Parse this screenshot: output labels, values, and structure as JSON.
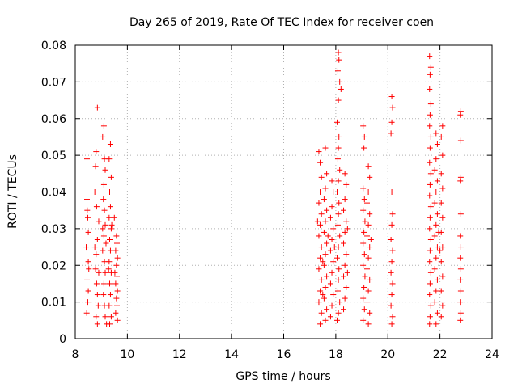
{
  "chart_data": {
    "type": "scatter",
    "title": "Day 265 of 2019, Rate Of TEC Index for receiver coen",
    "xlabel": "GPS time / hours",
    "ylabel": "ROTI / TECUs",
    "xlim": [
      8,
      24
    ],
    "ylim": [
      0,
      0.08
    ],
    "xticks": [
      8,
      10,
      12,
      14,
      16,
      18,
      20,
      22,
      24
    ],
    "xtick_labels": [
      "8",
      "10",
      "12",
      "14",
      "16",
      "18",
      "20",
      "22",
      "24"
    ],
    "yticks": [
      0,
      0.01,
      0.02,
      0.03,
      0.04,
      0.05,
      0.06,
      0.07,
      0.08
    ],
    "ytick_labels": [
      "0",
      "0.01",
      "0.02",
      "0.03",
      "0.04",
      "0.05",
      "0.06",
      "0.07",
      "0.08"
    ],
    "grid": true,
    "marker": "+",
    "color": "#ff0000",
    "series": [
      {
        "name": "ROTI",
        "points": [
          [
            8.45,
            0.049
          ],
          [
            8.45,
            0.038
          ],
          [
            8.48,
            0.033
          ],
          [
            8.5,
            0.029
          ],
          [
            8.42,
            0.025
          ],
          [
            8.5,
            0.021
          ],
          [
            8.45,
            0.016
          ],
          [
            8.5,
            0.013
          ],
          [
            8.48,
            0.01
          ],
          [
            8.44,
            0.007
          ],
          [
            8.52,
            0.019
          ],
          [
            8.46,
            0.035
          ],
          [
            8.8,
            0.051
          ],
          [
            8.85,
            0.063
          ],
          [
            8.78,
            0.047
          ],
          [
            8.75,
            0.04
          ],
          [
            8.82,
            0.036
          ],
          [
            8.9,
            0.032
          ],
          [
            8.85,
            0.027
          ],
          [
            8.8,
            0.023
          ],
          [
            8.78,
            0.019
          ],
          [
            8.82,
            0.015
          ],
          [
            8.85,
            0.012
          ],
          [
            8.88,
            0.009
          ],
          [
            8.8,
            0.006
          ],
          [
            8.85,
            0.004
          ],
          [
            8.9,
            0.018
          ],
          [
            8.75,
            0.025
          ],
          [
            9.1,
            0.058
          ],
          [
            9.05,
            0.055
          ],
          [
            9.12,
            0.049
          ],
          [
            9.15,
            0.046
          ],
          [
            9.1,
            0.042
          ],
          [
            9.08,
            0.038
          ],
          [
            9.12,
            0.035
          ],
          [
            9.15,
            0.031
          ],
          [
            9.1,
            0.028
          ],
          [
            9.05,
            0.024
          ],
          [
            9.12,
            0.021
          ],
          [
            9.15,
            0.018
          ],
          [
            9.1,
            0.015
          ],
          [
            9.08,
            0.012
          ],
          [
            9.12,
            0.009
          ],
          [
            9.15,
            0.006
          ],
          [
            9.2,
            0.004
          ],
          [
            9.05,
            0.03
          ],
          [
            9.18,
            0.026
          ],
          [
            9.35,
            0.053
          ],
          [
            9.3,
            0.049
          ],
          [
            9.38,
            0.044
          ],
          [
            9.32,
            0.04
          ],
          [
            9.35,
            0.036
          ],
          [
            9.3,
            0.033
          ],
          [
            9.38,
            0.03
          ],
          [
            9.32,
            0.027
          ],
          [
            9.35,
            0.024
          ],
          [
            9.3,
            0.021
          ],
          [
            9.38,
            0.018
          ],
          [
            9.32,
            0.015
          ],
          [
            9.35,
            0.012
          ],
          [
            9.3,
            0.009
          ],
          [
            9.38,
            0.006
          ],
          [
            9.32,
            0.004
          ],
          [
            9.4,
            0.031
          ],
          [
            9.28,
            0.019
          ],
          [
            9.6,
            0.026
          ],
          [
            9.55,
            0.024
          ],
          [
            9.62,
            0.022
          ],
          [
            9.58,
            0.02
          ],
          [
            9.6,
            0.017
          ],
          [
            9.55,
            0.015
          ],
          [
            9.62,
            0.013
          ],
          [
            9.58,
            0.011
          ],
          [
            9.6,
            0.009
          ],
          [
            9.55,
            0.007
          ],
          [
            9.62,
            0.005
          ],
          [
            9.58,
            0.028
          ],
          [
            9.5,
            0.033
          ],
          [
            9.52,
            0.018
          ],
          [
            17.35,
            0.051
          ],
          [
            17.4,
            0.048
          ],
          [
            17.45,
            0.044
          ],
          [
            17.4,
            0.04
          ],
          [
            17.35,
            0.037
          ],
          [
            17.45,
            0.034
          ],
          [
            17.4,
            0.031
          ],
          [
            17.35,
            0.028
          ],
          [
            17.45,
            0.025
          ],
          [
            17.4,
            0.022
          ],
          [
            17.35,
            0.019
          ],
          [
            17.45,
            0.016
          ],
          [
            17.4,
            0.013
          ],
          [
            17.35,
            0.01
          ],
          [
            17.45,
            0.007
          ],
          [
            17.4,
            0.004
          ],
          [
            17.3,
            0.032
          ],
          [
            17.5,
            0.021
          ],
          [
            17.6,
            0.052
          ],
          [
            17.65,
            0.045
          ],
          [
            17.6,
            0.041
          ],
          [
            17.55,
            0.038
          ],
          [
            17.65,
            0.035
          ],
          [
            17.6,
            0.032
          ],
          [
            17.55,
            0.029
          ],
          [
            17.65,
            0.026
          ],
          [
            17.6,
            0.023
          ],
          [
            17.55,
            0.02
          ],
          [
            17.65,
            0.017
          ],
          [
            17.6,
            0.014
          ],
          [
            17.55,
            0.011
          ],
          [
            17.65,
            0.008
          ],
          [
            17.6,
            0.005
          ],
          [
            17.7,
            0.028
          ],
          [
            17.5,
            0.012
          ],
          [
            17.85,
            0.043
          ],
          [
            17.9,
            0.04
          ],
          [
            17.85,
            0.036
          ],
          [
            17.8,
            0.033
          ],
          [
            17.9,
            0.03
          ],
          [
            17.85,
            0.027
          ],
          [
            17.8,
            0.024
          ],
          [
            17.9,
            0.021
          ],
          [
            17.85,
            0.018
          ],
          [
            17.8,
            0.015
          ],
          [
            17.9,
            0.012
          ],
          [
            17.85,
            0.009
          ],
          [
            17.8,
            0.006
          ],
          [
            17.95,
            0.025
          ],
          [
            18.1,
            0.078
          ],
          [
            18.12,
            0.076
          ],
          [
            18.08,
            0.073
          ],
          [
            18.15,
            0.07
          ],
          [
            18.1,
            0.065
          ],
          [
            18.05,
            0.059
          ],
          [
            18.12,
            0.055
          ],
          [
            18.1,
            0.052
          ],
          [
            18.08,
            0.049
          ],
          [
            18.15,
            0.046
          ],
          [
            18.1,
            0.043
          ],
          [
            18.05,
            0.04
          ],
          [
            18.12,
            0.037
          ],
          [
            18.1,
            0.034
          ],
          [
            18.08,
            0.031
          ],
          [
            18.15,
            0.028
          ],
          [
            18.1,
            0.025
          ],
          [
            18.05,
            0.022
          ],
          [
            18.12,
            0.019
          ],
          [
            18.1,
            0.016
          ],
          [
            18.08,
            0.013
          ],
          [
            18.15,
            0.01
          ],
          [
            18.1,
            0.007
          ],
          [
            18.05,
            0.005
          ],
          [
            18.2,
            0.068
          ],
          [
            18.35,
            0.045
          ],
          [
            18.4,
            0.042
          ],
          [
            18.35,
            0.038
          ],
          [
            18.3,
            0.035
          ],
          [
            18.4,
            0.032
          ],
          [
            18.35,
            0.029
          ],
          [
            18.3,
            0.026
          ],
          [
            18.4,
            0.023
          ],
          [
            18.35,
            0.02
          ],
          [
            18.3,
            0.017
          ],
          [
            18.4,
            0.014
          ],
          [
            18.35,
            0.011
          ],
          [
            18.3,
            0.008
          ],
          [
            18.45,
            0.03
          ],
          [
            18.45,
            0.018
          ],
          [
            19.05,
            0.058
          ],
          [
            19.1,
            0.055
          ],
          [
            19.08,
            0.052
          ],
          [
            19.05,
            0.041
          ],
          [
            19.1,
            0.038
          ],
          [
            19.05,
            0.035
          ],
          [
            19.12,
            0.032
          ],
          [
            19.08,
            0.029
          ],
          [
            19.05,
            0.026
          ],
          [
            19.1,
            0.023
          ],
          [
            19.05,
            0.02
          ],
          [
            19.12,
            0.017
          ],
          [
            19.08,
            0.014
          ],
          [
            19.05,
            0.011
          ],
          [
            19.1,
            0.008
          ],
          [
            19.05,
            0.005
          ],
          [
            19.25,
            0.047
          ],
          [
            19.3,
            0.044
          ],
          [
            19.25,
            0.04
          ],
          [
            19.2,
            0.037
          ],
          [
            19.3,
            0.034
          ],
          [
            19.25,
            0.031
          ],
          [
            19.2,
            0.028
          ],
          [
            19.3,
            0.025
          ],
          [
            19.25,
            0.022
          ],
          [
            19.2,
            0.019
          ],
          [
            19.3,
            0.016
          ],
          [
            19.25,
            0.013
          ],
          [
            19.2,
            0.01
          ],
          [
            19.3,
            0.007
          ],
          [
            19.25,
            0.004
          ],
          [
            19.35,
            0.027
          ],
          [
            20.15,
            0.066
          ],
          [
            20.18,
            0.063
          ],
          [
            20.15,
            0.059
          ],
          [
            20.12,
            0.056
          ],
          [
            20.15,
            0.04
          ],
          [
            20.18,
            0.034
          ],
          [
            20.15,
            0.031
          ],
          [
            20.12,
            0.027
          ],
          [
            20.18,
            0.024
          ],
          [
            20.15,
            0.021
          ],
          [
            20.12,
            0.018
          ],
          [
            20.18,
            0.015
          ],
          [
            20.15,
            0.012
          ],
          [
            20.12,
            0.009
          ],
          [
            20.18,
            0.006
          ],
          [
            20.15,
            0.004
          ],
          [
            21.6,
            0.077
          ],
          [
            21.65,
            0.074
          ],
          [
            21.62,
            0.072
          ],
          [
            21.6,
            0.068
          ],
          [
            21.65,
            0.064
          ],
          [
            21.62,
            0.061
          ],
          [
            21.6,
            0.058
          ],
          [
            21.65,
            0.055
          ],
          [
            21.62,
            0.052
          ],
          [
            21.6,
            0.048
          ],
          [
            21.65,
            0.045
          ],
          [
            21.62,
            0.042
          ],
          [
            21.6,
            0.039
          ],
          [
            21.65,
            0.036
          ],
          [
            21.62,
            0.033
          ],
          [
            21.6,
            0.03
          ],
          [
            21.65,
            0.027
          ],
          [
            21.62,
            0.024
          ],
          [
            21.6,
            0.021
          ],
          [
            21.65,
            0.018
          ],
          [
            21.62,
            0.015
          ],
          [
            21.6,
            0.012
          ],
          [
            21.65,
            0.009
          ],
          [
            21.62,
            0.006
          ],
          [
            21.6,
            0.004
          ],
          [
            21.85,
            0.056
          ],
          [
            21.9,
            0.053
          ],
          [
            21.85,
            0.049
          ],
          [
            21.8,
            0.046
          ],
          [
            21.9,
            0.043
          ],
          [
            21.85,
            0.04
          ],
          [
            21.8,
            0.037
          ],
          [
            21.9,
            0.034
          ],
          [
            21.85,
            0.031
          ],
          [
            21.8,
            0.028
          ],
          [
            21.9,
            0.025
          ],
          [
            21.85,
            0.022
          ],
          [
            21.8,
            0.019
          ],
          [
            21.9,
            0.016
          ],
          [
            21.85,
            0.013
          ],
          [
            21.8,
            0.01
          ],
          [
            21.9,
            0.007
          ],
          [
            21.85,
            0.004
          ],
          [
            21.95,
            0.029
          ],
          [
            22.1,
            0.058
          ],
          [
            22.05,
            0.055
          ],
          [
            22.1,
            0.05
          ],
          [
            22.05,
            0.045
          ],
          [
            22.1,
            0.041
          ],
          [
            22.05,
            0.037
          ],
          [
            22.1,
            0.033
          ],
          [
            22.05,
            0.029
          ],
          [
            22.1,
            0.025
          ],
          [
            22.05,
            0.021
          ],
          [
            22.1,
            0.017
          ],
          [
            22.05,
            0.013
          ],
          [
            22.1,
            0.009
          ],
          [
            22.05,
            0.006
          ],
          [
            22.0,
            0.024
          ],
          [
            22.8,
            0.062
          ],
          [
            22.78,
            0.061
          ],
          [
            22.8,
            0.054
          ],
          [
            22.8,
            0.044
          ],
          [
            22.78,
            0.043
          ],
          [
            22.8,
            0.034
          ],
          [
            22.78,
            0.028
          ],
          [
            22.8,
            0.025
          ],
          [
            22.78,
            0.022
          ],
          [
            22.8,
            0.019
          ],
          [
            22.78,
            0.016
          ],
          [
            22.8,
            0.013
          ],
          [
            22.78,
            0.01
          ],
          [
            22.8,
            0.007
          ],
          [
            22.78,
            0.005
          ]
        ]
      }
    ]
  }
}
